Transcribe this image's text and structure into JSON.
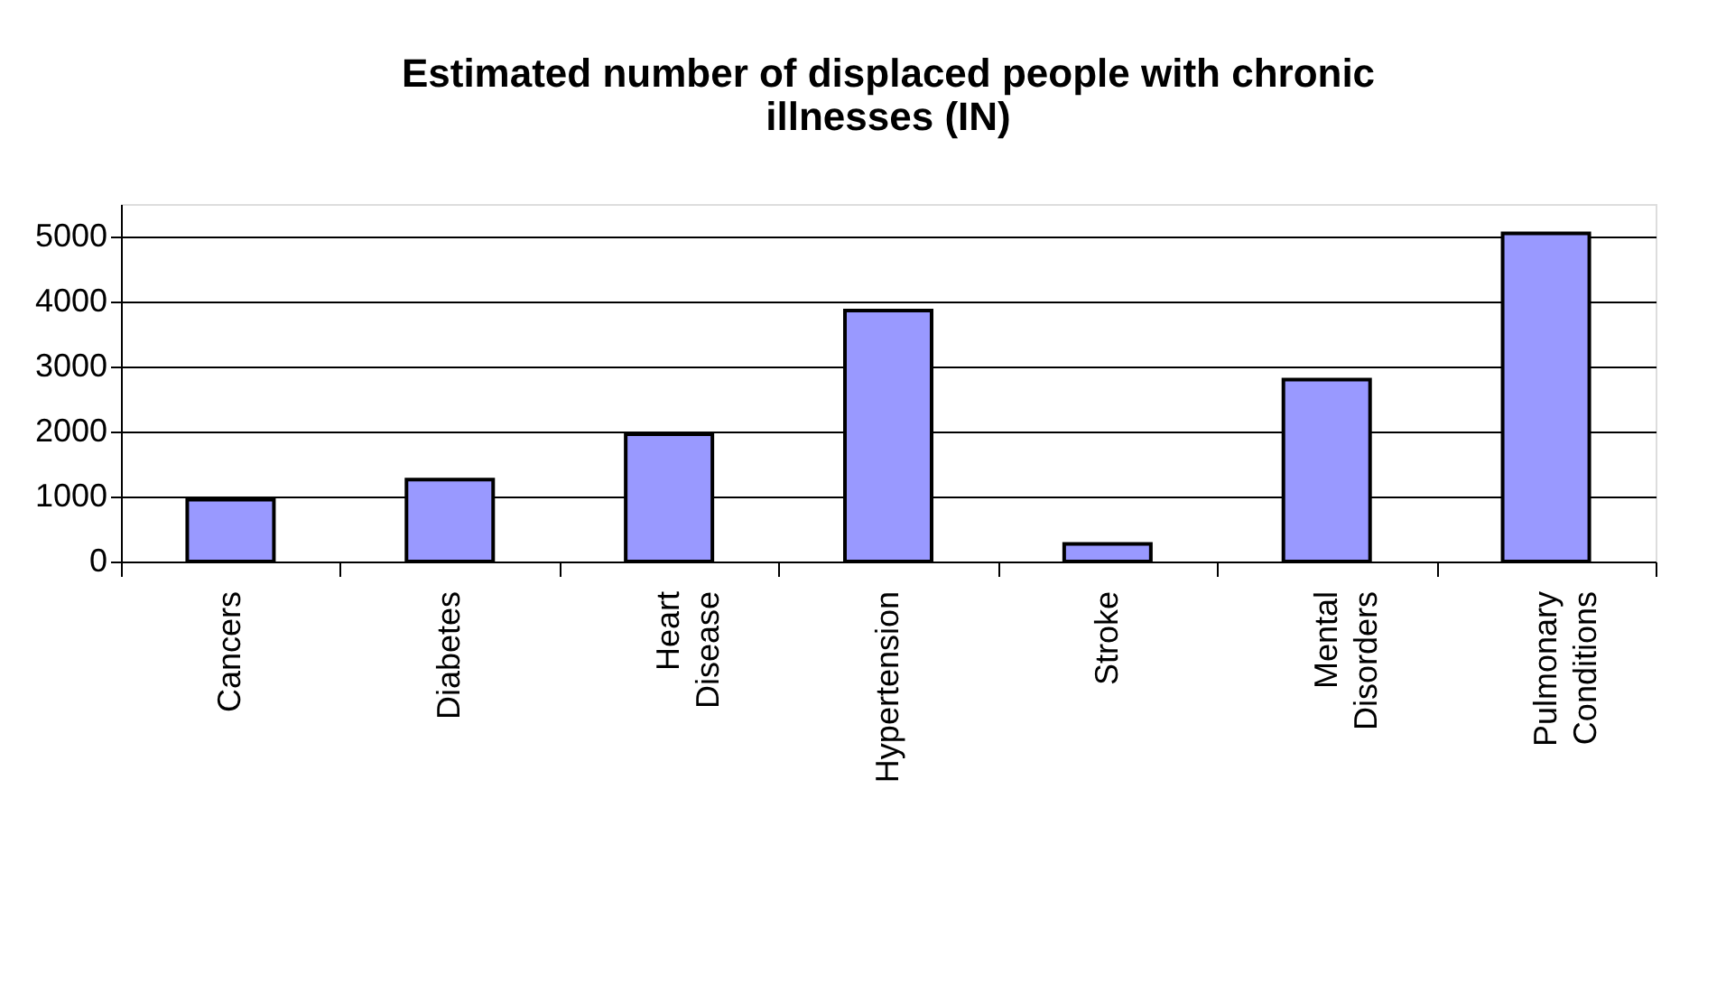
{
  "chart_data": {
    "type": "bar",
    "title": "Estimated number of displaced people with chronic illnesses (IN)",
    "categories": [
      "Cancers",
      "Diabetes",
      "Heart Disease",
      "Hypertension",
      "Stroke",
      "Mental Disorders",
      "Pulmonary Conditions"
    ],
    "values": [
      950,
      1260,
      1960,
      3860,
      270,
      2800,
      5050
    ],
    "color": "#9999ff",
    "ylim": [
      0,
      5500
    ],
    "yticks": [
      0,
      1000,
      2000,
      3000,
      4000,
      5000
    ],
    "grid": "y"
  }
}
